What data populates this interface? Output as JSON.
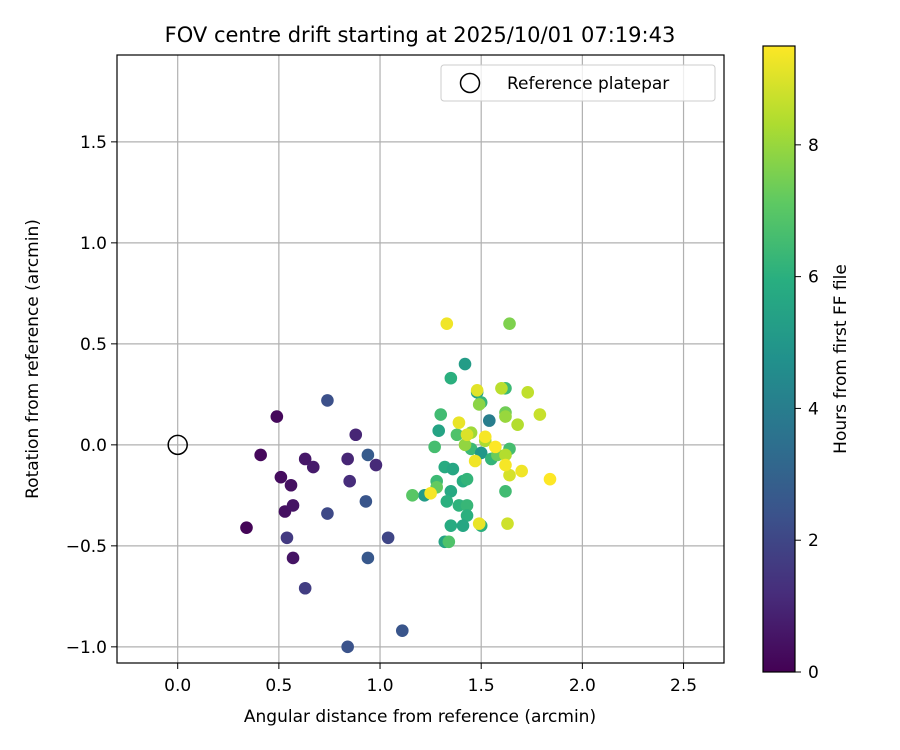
{
  "chart_data": {
    "type": "scatter",
    "title": "FOV centre drift starting at 2025/10/01 07:19:43",
    "xlabel": "Angular distance from reference (arcmin)",
    "ylabel": "Rotation from reference (arcmin)",
    "xlim": [
      -0.3,
      2.7
    ],
    "ylim": [
      -1.08,
      1.93
    ],
    "xticks": [
      0.0,
      0.5,
      1.0,
      1.5,
      2.0,
      2.5
    ],
    "xtick_labels": [
      "0.0",
      "0.5",
      "1.0",
      "1.5",
      "2.0",
      "2.5"
    ],
    "yticks": [
      -1.0,
      -0.5,
      0.0,
      0.5,
      1.0,
      1.5
    ],
    "ytick_labels": [
      "−1.0",
      "−0.5",
      "0.0",
      "0.5",
      "1.0",
      "1.5"
    ],
    "grid": true,
    "legend": {
      "position": "upper-right",
      "entries": [
        "Reference platepar"
      ]
    },
    "reference_point": {
      "x": 0.0,
      "y": 0.0,
      "label": "Reference platepar"
    },
    "colorbar": {
      "label": "Hours from first FF file",
      "min": 0,
      "max": 9.5,
      "ticks": [
        0,
        2,
        4,
        6,
        8
      ],
      "tick_labels": [
        "0",
        "2",
        "4",
        "6",
        "8"
      ],
      "colormap": "viridis"
    },
    "points": [
      {
        "x": 0.34,
        "y": -0.41,
        "h": 0.1
      },
      {
        "x": 0.41,
        "y": -0.05,
        "h": 0.2
      },
      {
        "x": 0.49,
        "y": 0.14,
        "h": 0.2
      },
      {
        "x": 0.51,
        "y": -0.16,
        "h": 0.3
      },
      {
        "x": 0.53,
        "y": -0.33,
        "h": 0.4
      },
      {
        "x": 0.56,
        "y": -0.2,
        "h": 0.4
      },
      {
        "x": 0.57,
        "y": -0.3,
        "h": 0.5
      },
      {
        "x": 0.57,
        "y": -0.56,
        "h": 0.5
      },
      {
        "x": 0.63,
        "y": -0.07,
        "h": 0.6
      },
      {
        "x": 0.67,
        "y": -0.11,
        "h": 0.7
      },
      {
        "x": 0.84,
        "y": -0.07,
        "h": 1.0
      },
      {
        "x": 0.85,
        "y": -0.18,
        "h": 1.2
      },
      {
        "x": 0.88,
        "y": 0.05,
        "h": 1.0
      },
      {
        "x": 0.98,
        "y": -0.1,
        "h": 1.1
      },
      {
        "x": 0.54,
        "y": -0.46,
        "h": 1.6
      },
      {
        "x": 0.63,
        "y": -0.71,
        "h": 1.7
      },
      {
        "x": 0.74,
        "y": -0.34,
        "h": 2.1
      },
      {
        "x": 0.74,
        "y": 0.22,
        "h": 2.3
      },
      {
        "x": 0.84,
        "y": -1.0,
        "h": 2.4
      },
      {
        "x": 0.93,
        "y": -0.28,
        "h": 2.5
      },
      {
        "x": 0.94,
        "y": -0.56,
        "h": 2.6
      },
      {
        "x": 0.94,
        "y": -0.05,
        "h": 2.7
      },
      {
        "x": 1.04,
        "y": -0.46,
        "h": 2.0
      },
      {
        "x": 1.11,
        "y": -0.92,
        "h": 2.5
      },
      {
        "x": 1.42,
        "y": 0.4,
        "h": 5.2
      },
      {
        "x": 1.54,
        "y": 0.12,
        "h": 4.0
      },
      {
        "x": 1.29,
        "y": 0.07,
        "h": 5.5
      },
      {
        "x": 1.35,
        "y": 0.33,
        "h": 6.0
      },
      {
        "x": 1.3,
        "y": 0.15,
        "h": 6.5
      },
      {
        "x": 1.38,
        "y": 0.05,
        "h": 6.8
      },
      {
        "x": 1.27,
        "y": -0.01,
        "h": 6.6
      },
      {
        "x": 1.32,
        "y": -0.11,
        "h": 5.8
      },
      {
        "x": 1.36,
        "y": -0.12,
        "h": 5.6
      },
      {
        "x": 1.41,
        "y": -0.18,
        "h": 5.9
      },
      {
        "x": 1.43,
        "y": -0.17,
        "h": 6.2
      },
      {
        "x": 1.35,
        "y": -0.23,
        "h": 5.7
      },
      {
        "x": 1.22,
        "y": -0.25,
        "h": 5.2
      },
      {
        "x": 1.28,
        "y": -0.18,
        "h": 6.4
      },
      {
        "x": 1.33,
        "y": -0.28,
        "h": 6.0
      },
      {
        "x": 1.39,
        "y": -0.3,
        "h": 6.1
      },
      {
        "x": 1.43,
        "y": -0.3,
        "h": 6.3
      },
      {
        "x": 1.43,
        "y": -0.35,
        "h": 6.0
      },
      {
        "x": 1.35,
        "y": -0.4,
        "h": 5.8
      },
      {
        "x": 1.41,
        "y": -0.4,
        "h": 5.6
      },
      {
        "x": 1.32,
        "y": -0.48,
        "h": 5.5
      },
      {
        "x": 1.34,
        "y": -0.48,
        "h": 6.8
      },
      {
        "x": 1.5,
        "y": -0.4,
        "h": 6.0
      },
      {
        "x": 1.62,
        "y": -0.23,
        "h": 6.5
      },
      {
        "x": 1.16,
        "y": -0.25,
        "h": 7.0
      },
      {
        "x": 1.28,
        "y": -0.21,
        "h": 7.2
      },
      {
        "x": 1.48,
        "y": 0.26,
        "h": 5.4
      },
      {
        "x": 1.5,
        "y": 0.21,
        "h": 6.2
      },
      {
        "x": 1.45,
        "y": -0.02,
        "h": 6.4
      },
      {
        "x": 1.5,
        "y": -0.04,
        "h": 5.0
      },
      {
        "x": 1.55,
        "y": -0.07,
        "h": 6.2
      },
      {
        "x": 1.58,
        "y": -0.05,
        "h": 7.3
      },
      {
        "x": 1.64,
        "y": -0.02,
        "h": 6.6
      },
      {
        "x": 1.62,
        "y": 0.28,
        "h": 6.4
      },
      {
        "x": 1.64,
        "y": 0.6,
        "h": 7.6
      },
      {
        "x": 1.62,
        "y": 0.16,
        "h": 7.4
      },
      {
        "x": 1.49,
        "y": 0.2,
        "h": 7.8
      },
      {
        "x": 1.42,
        "y": 0.0,
        "h": 7.9
      },
      {
        "x": 1.45,
        "y": 0.06,
        "h": 8.1
      },
      {
        "x": 1.52,
        "y": 0.02,
        "h": 8.3
      },
      {
        "x": 1.62,
        "y": 0.14,
        "h": 8.0
      },
      {
        "x": 1.68,
        "y": 0.1,
        "h": 8.4
      },
      {
        "x": 1.73,
        "y": 0.26,
        "h": 8.6
      },
      {
        "x": 1.79,
        "y": 0.15,
        "h": 8.7
      },
      {
        "x": 1.6,
        "y": 0.28,
        "h": 8.5
      },
      {
        "x": 1.63,
        "y": -0.39,
        "h": 8.8
      },
      {
        "x": 1.62,
        "y": -0.05,
        "h": 8.4
      },
      {
        "x": 1.64,
        "y": -0.15,
        "h": 8.9
      },
      {
        "x": 1.48,
        "y": 0.27,
        "h": 9.1
      },
      {
        "x": 1.33,
        "y": 0.6,
        "h": 9.3
      },
      {
        "x": 1.39,
        "y": 0.11,
        "h": 9.2
      },
      {
        "x": 1.43,
        "y": 0.05,
        "h": 9.0
      },
      {
        "x": 1.47,
        "y": -0.08,
        "h": 9.3
      },
      {
        "x": 1.52,
        "y": 0.04,
        "h": 9.4
      },
      {
        "x": 1.57,
        "y": -0.01,
        "h": 9.5
      },
      {
        "x": 1.62,
        "y": -0.1,
        "h": 9.4
      },
      {
        "x": 1.7,
        "y": -0.13,
        "h": 9.3
      },
      {
        "x": 1.84,
        "y": -0.17,
        "h": 9.5
      },
      {
        "x": 1.49,
        "y": -0.39,
        "h": 9.2
      },
      {
        "x": 1.25,
        "y": -0.24,
        "h": 9.4
      }
    ]
  }
}
